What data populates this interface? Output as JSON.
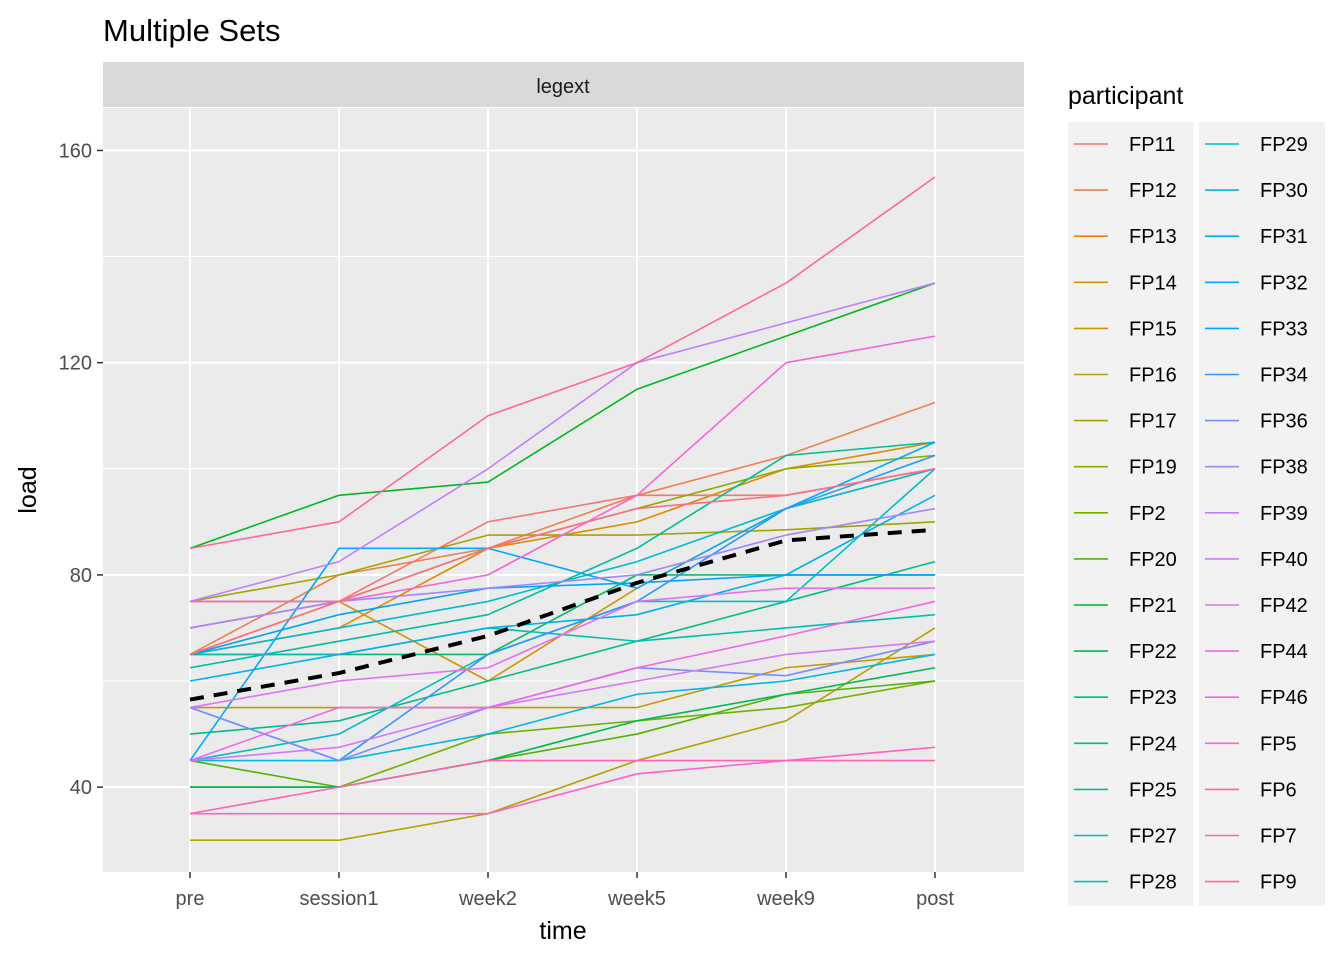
{
  "chart_data": {
    "type": "line",
    "title": "Multiple Sets",
    "facet": "legext",
    "xlabel": "time",
    "ylabel": "load",
    "categories": [
      "pre",
      "session1",
      "week2",
      "week5",
      "week9",
      "post"
    ],
    "ylim": [
      24,
      168
    ],
    "yticks": [
      40,
      80,
      120,
      160
    ],
    "grid": true,
    "legend": {
      "title": "participant",
      "position": "right",
      "columns": 2
    },
    "series": [
      {
        "name": "FP11",
        "color": "#F8766D",
        "values": [
          70,
          75,
          90,
          95,
          95,
          100
        ]
      },
      {
        "name": "FP12",
        "color": "#F07F4F",
        "values": [
          65,
          80,
          85,
          95,
          102.5,
          112.5
        ]
      },
      {
        "name": "FP13",
        "color": "#E58700",
        "values": [
          65,
          70,
          85,
          90,
          100,
          105
        ]
      },
      {
        "name": "FP14",
        "color": "#D89000",
        "values": [
          65,
          75,
          60,
          77.5,
          92.5,
          100
        ]
      },
      {
        "name": "FP15",
        "color": "#C99800",
        "values": [
          55,
          55,
          55,
          55,
          62.5,
          65
        ]
      },
      {
        "name": "FP16",
        "color": "#B79F00",
        "values": [
          30,
          30,
          35,
          45,
          52.5,
          70
        ]
      },
      {
        "name": "FP17",
        "color": "#A3A500",
        "values": [
          75,
          80,
          87.5,
          87.5,
          88.5,
          90
        ]
      },
      {
        "name": "FP19",
        "color": "#8DAB00",
        "values": [
          75,
          75,
          85,
          92.5,
          100,
          102.5
        ]
      },
      {
        "name": "FP2",
        "color": "#72B000",
        "values": [
          40,
          40,
          50,
          52.5,
          55,
          60
        ]
      },
      {
        "name": "FP20",
        "color": "#4FB400",
        "values": [
          45,
          40,
          45,
          50,
          57.5,
          60
        ]
      },
      {
        "name": "FP21",
        "color": "#00B81F",
        "values": [
          85,
          95,
          97.5,
          115,
          125,
          135
        ]
      },
      {
        "name": "FP22",
        "color": "#00BA52",
        "values": [
          40,
          40,
          45,
          52.5,
          57.5,
          62.5
        ]
      },
      {
        "name": "FP23",
        "color": "#00BC6E",
        "values": [
          65,
          65,
          65,
          80,
          80,
          80
        ]
      },
      {
        "name": "FP24",
        "color": "#00BD87",
        "values": [
          50,
          52.5,
          60,
          67.5,
          75,
          82.5
        ]
      },
      {
        "name": "FP25",
        "color": "#00BE9C",
        "values": [
          62.5,
          67.5,
          72.5,
          85,
          102.5,
          105
        ]
      },
      {
        "name": "FP27",
        "color": "#00BFB1",
        "values": [
          65,
          65,
          70,
          67.5,
          70,
          72.5
        ]
      },
      {
        "name": "FP28",
        "color": "#00BDC4",
        "values": [
          45,
          50,
          65,
          75,
          75,
          100
        ]
      },
      {
        "name": "FP29",
        "color": "#00BBD5",
        "values": [
          65,
          70,
          75,
          82.5,
          92.5,
          100
        ]
      },
      {
        "name": "FP30",
        "color": "#00B7E5",
        "values": [
          45,
          45,
          50,
          57.5,
          60,
          65
        ]
      },
      {
        "name": "FP31",
        "color": "#00B1F2",
        "values": [
          60,
          65,
          70,
          72.5,
          80,
          95
        ]
      },
      {
        "name": "FP32",
        "color": "#00AAFC",
        "values": [
          45,
          85,
          85,
          77.5,
          92.5,
          105
        ]
      },
      {
        "name": "FP33",
        "color": "#00A2FF",
        "values": [
          65,
          72.5,
          77.5,
          78.5,
          80,
          80
        ]
      },
      {
        "name": "FP34",
        "color": "#2A98FF",
        "values": [
          55,
          45,
          65,
          75,
          92.5,
          102.5
        ]
      },
      {
        "name": "FP36",
        "color": "#7A8DFF",
        "values": [
          55,
          45,
          55,
          62.5,
          61,
          67.5
        ]
      },
      {
        "name": "FP38",
        "color": "#A185FF",
        "values": [
          70,
          75,
          77.5,
          80,
          87.5,
          92.5
        ]
      },
      {
        "name": "FP39",
        "color": "#BE80FF",
        "values": [
          75,
          82.5,
          100,
          120,
          127.5,
          135
        ]
      },
      {
        "name": "FP40",
        "color": "#D477FF",
        "values": [
          45,
          47.5,
          55,
          60,
          65,
          67.5
        ]
      },
      {
        "name": "FP42",
        "color": "#E36FF6",
        "values": [
          55,
          60,
          62.5,
          75,
          77.5,
          77.5
        ]
      },
      {
        "name": "FP44",
        "color": "#F066EA",
        "values": [
          45,
          55,
          55,
          62.5,
          68.5,
          75
        ]
      },
      {
        "name": "FP46",
        "color": "#F963DA",
        "values": [
          75,
          75,
          80,
          95,
          120,
          125
        ]
      },
      {
        "name": "FP5",
        "color": "#FF61C8",
        "values": [
          35,
          35,
          35,
          42.5,
          45,
          47.5
        ]
      },
      {
        "name": "FP6",
        "color": "#FF63B3",
        "values": [
          35,
          40,
          45,
          45,
          45,
          45
        ]
      },
      {
        "name": "FP7",
        "color": "#FF679C",
        "values": [
          85,
          90,
          110,
          120,
          135,
          155
        ]
      },
      {
        "name": "FP9",
        "color": "#FF6C84",
        "values": [
          65,
          75,
          85,
          92.5,
          95,
          100
        ]
      }
    ],
    "mean_line": {
      "style": "dashed",
      "color": "#000000",
      "values": [
        56.5,
        61.5,
        68.5,
        78.5,
        86.5,
        88.5
      ]
    }
  }
}
